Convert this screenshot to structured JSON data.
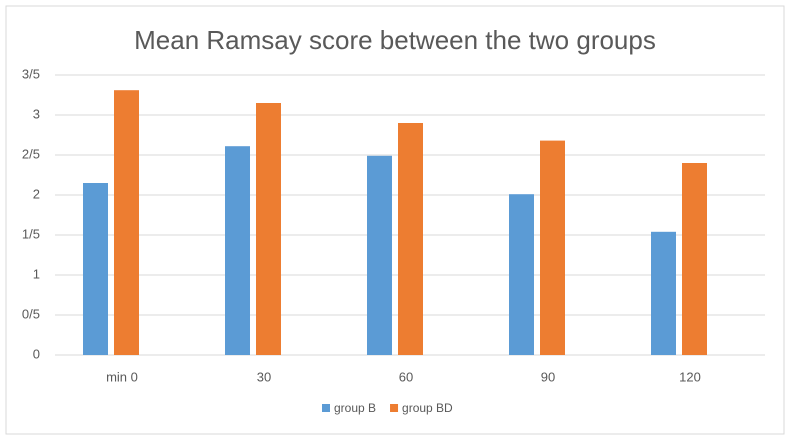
{
  "chart_data": {
    "type": "bar",
    "title": "Mean Ramsay score  between the two groups",
    "categories": [
      "min 0",
      "30",
      "60",
      "90",
      "120"
    ],
    "series": [
      {
        "name": "group B",
        "color": "#5b9bd5",
        "values": [
          2.15,
          2.61,
          2.49,
          2.01,
          1.54
        ]
      },
      {
        "name": "group BD",
        "color": "#ed7d31",
        "values": [
          3.31,
          3.15,
          2.9,
          2.68,
          2.4
        ]
      }
    ],
    "ylim": [
      0,
      3.5
    ],
    "yticks": [
      0,
      {
        "value": 0.5,
        "label": "0/5"
      },
      1,
      {
        "value": 1.5,
        "label": "1/5"
      },
      2,
      {
        "value": 2.5,
        "label": "2/5"
      },
      3,
      {
        "value": 3.5,
        "label": "3/5"
      }
    ],
    "grid": true,
    "legend": "bottom"
  }
}
